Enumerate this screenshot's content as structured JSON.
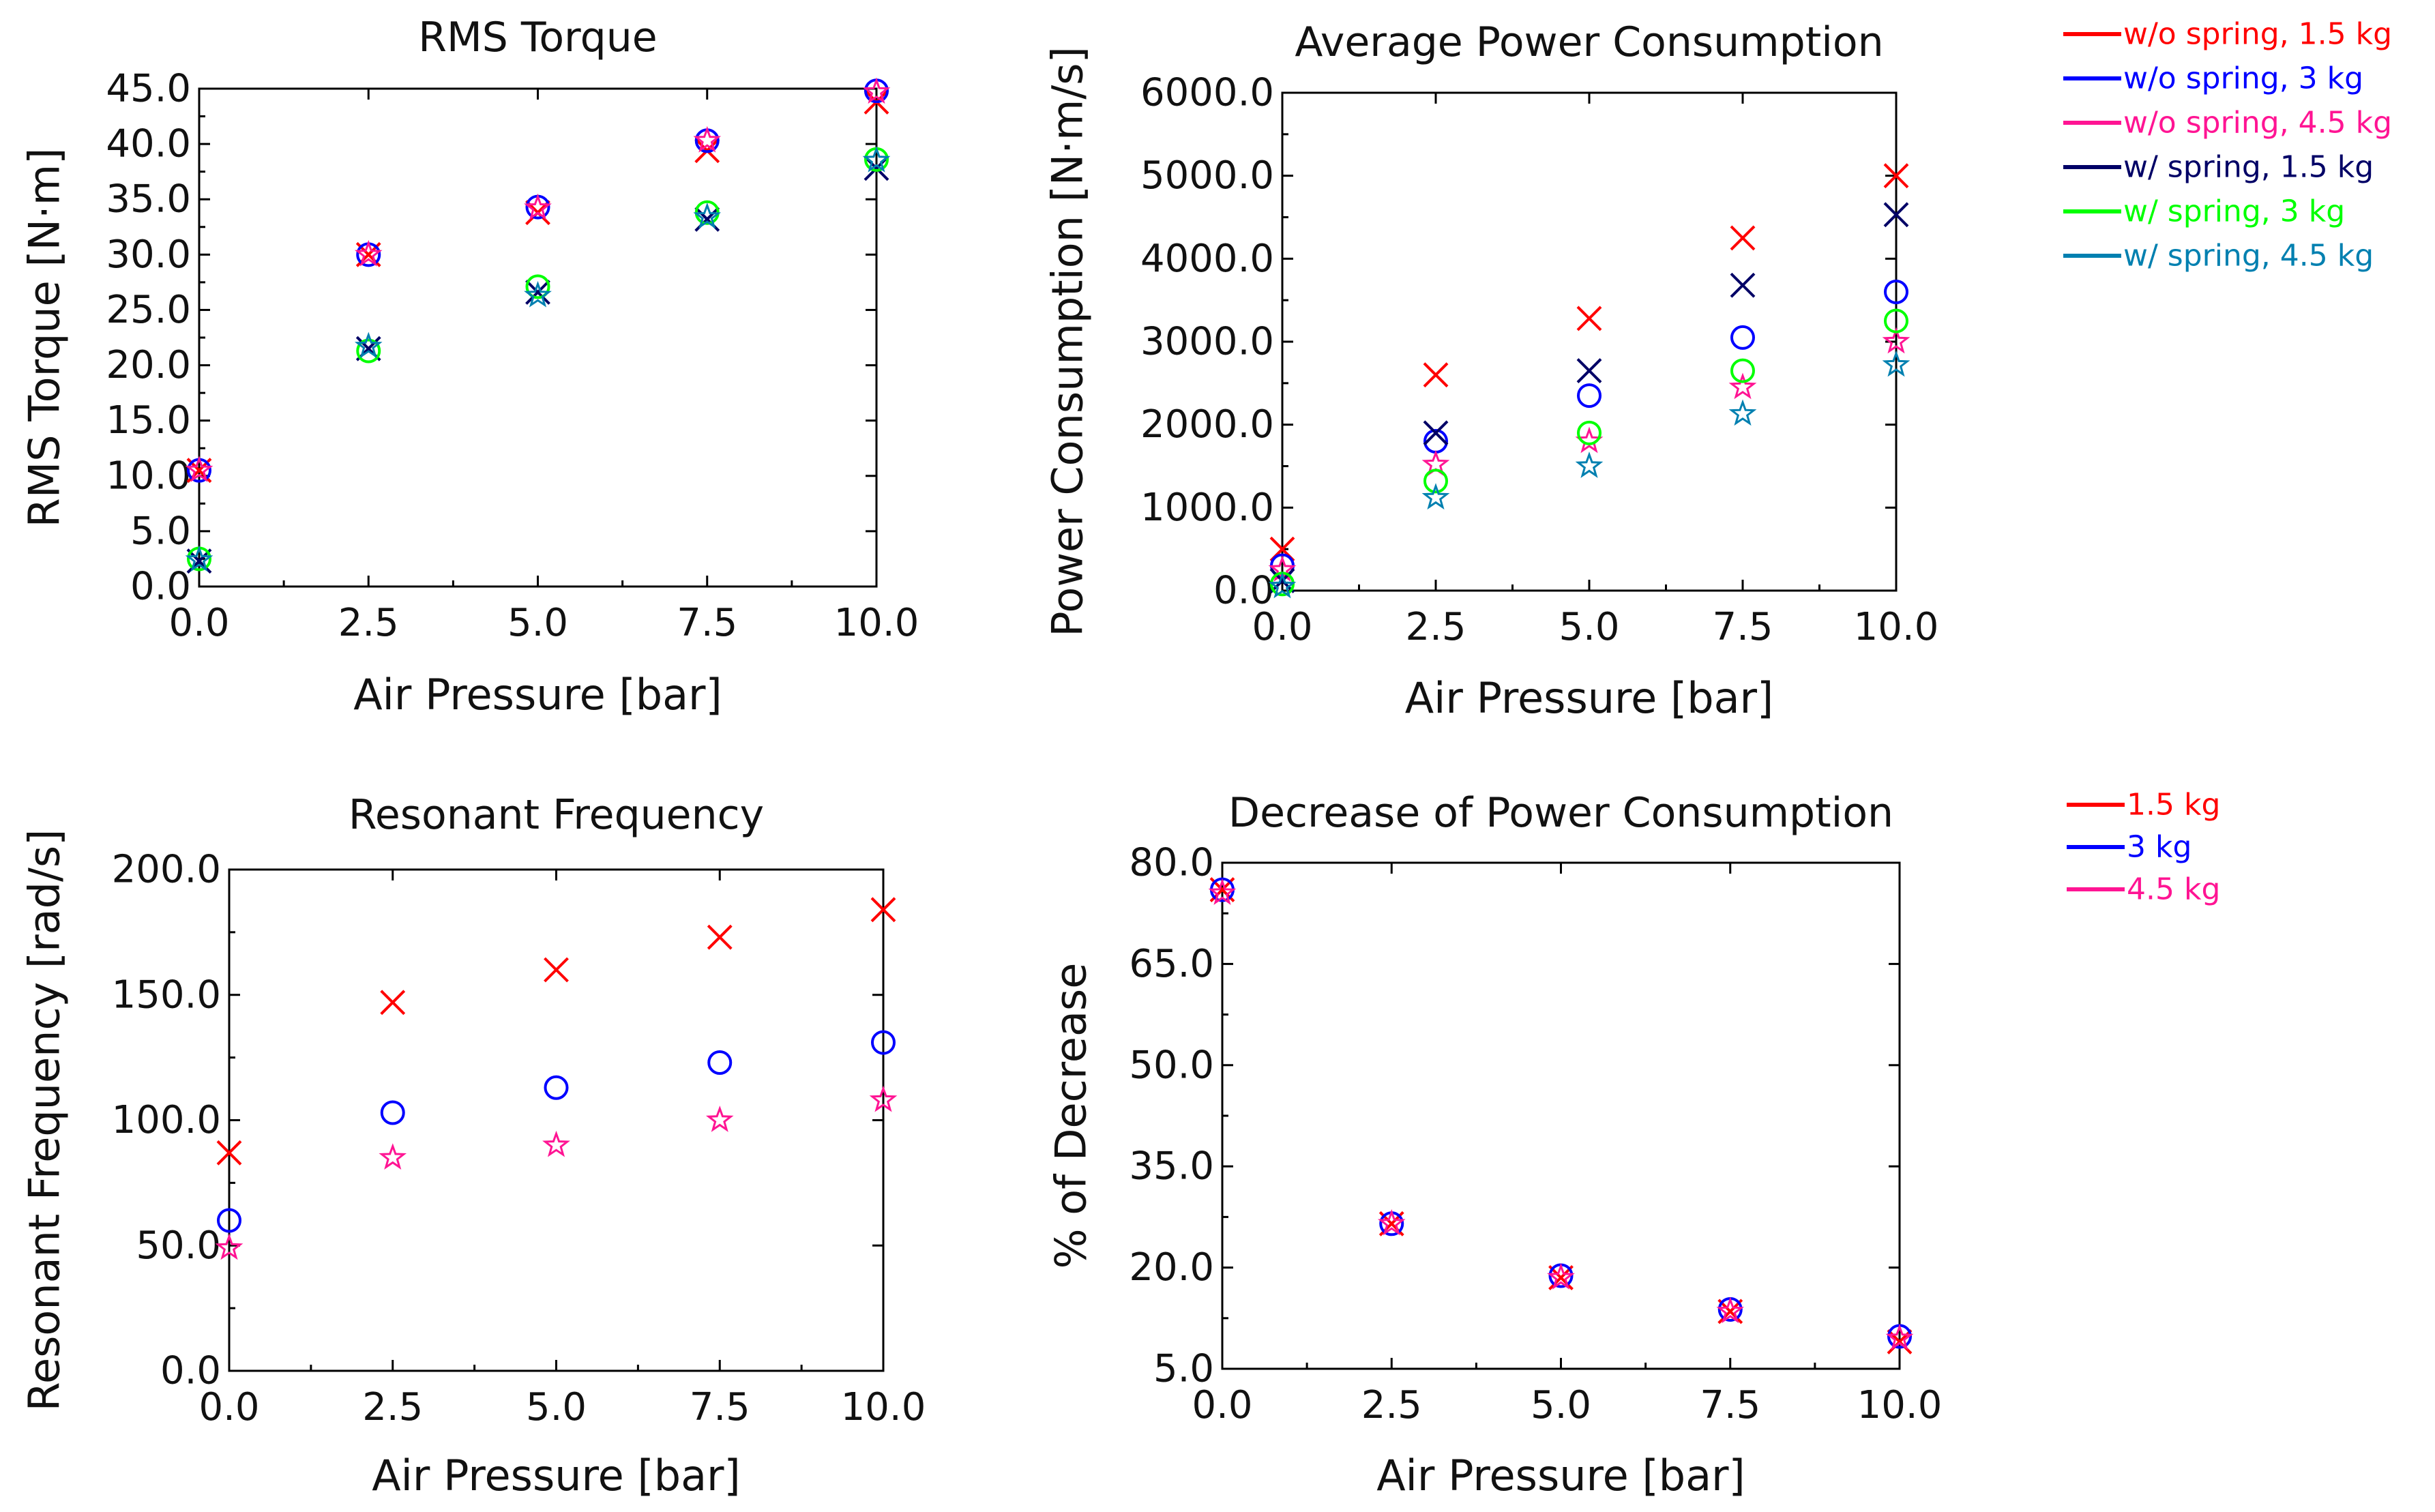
{
  "chart_data": [
    {
      "id": "rms",
      "type": "scatter",
      "title": "RMS Torque",
      "xlabel": "Air Pressure [bar]",
      "ylabel": "RMS Torque [N·m]",
      "xlim": [
        0,
        10
      ],
      "ylim": [
        0,
        45
      ],
      "xticks": [
        "0.0",
        "2.5",
        "5.0",
        "7.5",
        "10.0"
      ],
      "yticks": [
        "0.0",
        "5.0",
        "10.0",
        "15.0",
        "20.0",
        "25.0",
        "30.0",
        "35.0",
        "40.0",
        "45.0"
      ],
      "x": [
        0,
        2.5,
        5,
        7.5,
        10
      ],
      "series": [
        {
          "name": "w/o spring, 1.5 kg",
          "marker": "x",
          "color": "#ff0000",
          "values": [
            10.5,
            30.0,
            33.8,
            39.4,
            43.8
          ]
        },
        {
          "name": "w/o spring, 3 kg",
          "marker": "circle",
          "color": "#0000ff",
          "values": [
            10.5,
            30.0,
            34.3,
            40.3,
            44.8
          ]
        },
        {
          "name": "w/o spring, 4.5 kg",
          "marker": "star",
          "color": "#ff1493",
          "values": [
            10.5,
            30.0,
            34.2,
            40.3,
            44.7
          ]
        },
        {
          "name": "w/ spring, 1.5 kg",
          "marker": "x",
          "color": "#000066",
          "values": [
            2.3,
            21.5,
            26.6,
            33.2,
            37.8
          ]
        },
        {
          "name": "w/ spring, 3 kg",
          "marker": "circle",
          "color": "#00ff00",
          "values": [
            2.5,
            21.3,
            27.1,
            33.8,
            38.6
          ]
        },
        {
          "name": "w/ spring, 4.5 kg",
          "marker": "star",
          "color": "#0080b0",
          "values": [
            2.4,
            21.7,
            26.3,
            33.4,
            38.5
          ]
        }
      ]
    },
    {
      "id": "power",
      "type": "scatter",
      "title": "Average Power Consumption",
      "xlabel": "Air Pressure [bar]",
      "ylabel": "Power Consumption [N·m/s]",
      "xlim": [
        0,
        10
      ],
      "ylim": [
        0,
        6000
      ],
      "xticks": [
        "0.0",
        "2.5",
        "5.0",
        "7.5",
        "10.0"
      ],
      "yticks": [
        "0.0",
        "1000.0",
        "2000.0",
        "3000.0",
        "4000.0",
        "5000.0",
        "6000.0"
      ],
      "x": [
        0,
        2.5,
        5,
        7.5,
        10
      ],
      "series": [
        {
          "name": "w/o spring, 1.5 kg",
          "marker": "x",
          "color": "#ff0000",
          "values": [
            500,
            2600,
            3280,
            4250,
            5000
          ]
        },
        {
          "name": "w/o spring, 3 kg",
          "marker": "circle",
          "color": "#0000ff",
          "values": [
            300,
            1800,
            2350,
            3050,
            3600
          ]
        },
        {
          "name": "w/o spring, 4.5 kg",
          "marker": "star",
          "color": "#ff1493",
          "values": [
            250,
            1520,
            1800,
            2450,
            3000
          ]
        },
        {
          "name": "w/ spring, 1.5 kg",
          "marker": "x",
          "color": "#000066",
          "values": [
            120,
            1900,
            2650,
            3680,
            4530
          ]
        },
        {
          "name": "w/ spring, 3 kg",
          "marker": "circle",
          "color": "#00ff00",
          "values": [
            80,
            1320,
            1900,
            2650,
            3250
          ]
        },
        {
          "name": "w/ spring, 4.5 kg",
          "marker": "star",
          "color": "#0080b0",
          "values": [
            50,
            1120,
            1500,
            2130,
            2720
          ]
        }
      ]
    },
    {
      "id": "freq",
      "type": "scatter",
      "title": "Resonant Frequency",
      "xlabel": "Air Pressure [bar]",
      "ylabel": "Resonant Frequency [rad/s]",
      "xlim": [
        0,
        10
      ],
      "ylim": [
        0,
        200
      ],
      "xticks": [
        "0.0",
        "2.5",
        "5.0",
        "7.5",
        "10.0"
      ],
      "yticks": [
        "0.0",
        "50.0",
        "100.0",
        "150.0",
        "200.0"
      ],
      "x": [
        0,
        2.5,
        5,
        7.5,
        10
      ],
      "series": [
        {
          "name": "1.5 kg",
          "marker": "x",
          "color": "#ff0000",
          "values": [
            87,
            147,
            160,
            173,
            184
          ]
        },
        {
          "name": "3 kg",
          "marker": "circle",
          "color": "#0000ff",
          "values": [
            60,
            103,
            113,
            123,
            131
          ]
        },
        {
          "name": "4.5 kg",
          "marker": "star",
          "color": "#ff1493",
          "values": [
            49,
            85,
            90,
            100,
            108
          ]
        }
      ]
    },
    {
      "id": "decrease",
      "type": "scatter",
      "title": "Decrease of Power Consumption",
      "xlabel": "Air Pressure [bar]",
      "ylabel": "% of Decrease",
      "xlim": [
        0,
        10
      ],
      "ylim": [
        5,
        80
      ],
      "xticks": [
        "0.0",
        "2.5",
        "5.0",
        "7.5",
        "10.0"
      ],
      "yticks": [
        "5.0",
        "20.0",
        "35.0",
        "50.0",
        "65.0",
        "80.0"
      ],
      "x": [
        0,
        2.5,
        5,
        7.5,
        10
      ],
      "series": [
        {
          "name": "1.5 kg",
          "marker": "x",
          "color": "#ff0000",
          "values": [
            76,
            26.5,
            18.5,
            13.5,
            9.0
          ]
        },
        {
          "name": "3 kg",
          "marker": "circle",
          "color": "#0000ff",
          "values": [
            76,
            26.5,
            18.8,
            13.8,
            9.8
          ]
        },
        {
          "name": "4.5 kg",
          "marker": "star",
          "color": "#ff1493",
          "values": [
            75.5,
            26.5,
            18.5,
            13.5,
            9.5
          ]
        }
      ]
    }
  ],
  "legends": [
    {
      "id": "legend-top",
      "entries": [
        {
          "label": "w/o spring, 1.5 kg",
          "color": "#ff0000"
        },
        {
          "label": "w/o spring, 3 kg",
          "color": "#0000ff"
        },
        {
          "label": "w/o spring, 4.5 kg",
          "color": "#ff1493"
        },
        {
          "label": "w/ spring, 1.5 kg",
          "color": "#000066"
        },
        {
          "label": "w/ spring, 3 kg",
          "color": "#00ff00"
        },
        {
          "label": "w/ spring, 4.5 kg",
          "color": "#0080b0"
        }
      ]
    },
    {
      "id": "legend-bottom",
      "entries": [
        {
          "label": "1.5 kg",
          "color": "#ff0000"
        },
        {
          "label": "3 kg",
          "color": "#0000ff"
        },
        {
          "label": "4.5 kg",
          "color": "#ff1493"
        }
      ]
    }
  ]
}
